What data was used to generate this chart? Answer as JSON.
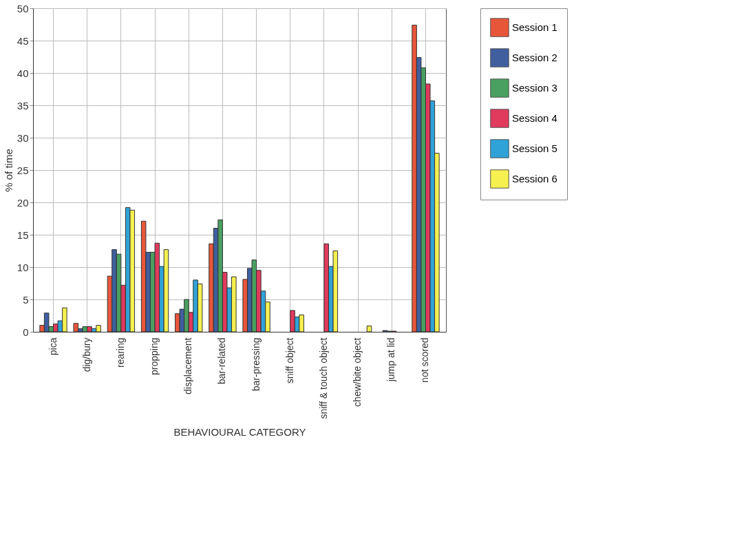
{
  "chart_data": {
    "type": "bar",
    "xlabel": "BEHAVIOURAL CATEGORY",
    "ylabel": "% of time",
    "categories": [
      "pica",
      "dig/bury",
      "rearing",
      "propping",
      "displacement",
      "bar-related",
      "bar-pressing",
      "sniff object",
      "sniff & touch object",
      "chew/bite object",
      "jump at lid",
      "not scored"
    ],
    "series": [
      {
        "name": "Session 1",
        "color": "#e8563a",
        "values": [
          1.0,
          1.3,
          8.6,
          17.1,
          2.8,
          13.6,
          8.1,
          0,
          0,
          0,
          0,
          47.4
        ]
      },
      {
        "name": "Session 2",
        "color": "#3f5f9f",
        "values": [
          2.9,
          0.5,
          12.7,
          12.3,
          3.5,
          16.0,
          9.8,
          0,
          0,
          0,
          0.2,
          42.4
        ]
      },
      {
        "name": "Session 3",
        "color": "#4aa060",
        "values": [
          0.8,
          0.8,
          12.0,
          12.3,
          5.0,
          17.3,
          11.1,
          0,
          0,
          0,
          0.1,
          40.8
        ]
      },
      {
        "name": "Session 4",
        "color": "#e03a5c",
        "values": [
          1.2,
          0.8,
          7.2,
          13.7,
          3.0,
          9.2,
          9.5,
          3.3,
          13.6,
          0,
          0.1,
          38.3
        ]
      },
      {
        "name": "Session 5",
        "color": "#2fa3d8",
        "values": [
          1.7,
          0.5,
          19.2,
          10.1,
          8.0,
          6.8,
          6.3,
          2.3,
          10.1,
          0,
          0,
          35.7
        ]
      },
      {
        "name": "Session 6",
        "color": "#f6f050",
        "values": [
          3.7,
          1.0,
          18.8,
          12.7,
          7.4,
          8.5,
          4.6,
          2.6,
          12.5,
          0.9,
          0,
          27.6
        ]
      }
    ],
    "ylim": [
      0,
      50
    ],
    "yticks": [
      0,
      5,
      10,
      15,
      20,
      25,
      30,
      35,
      40,
      45,
      50
    ],
    "grid": true,
    "legend": "top right"
  }
}
